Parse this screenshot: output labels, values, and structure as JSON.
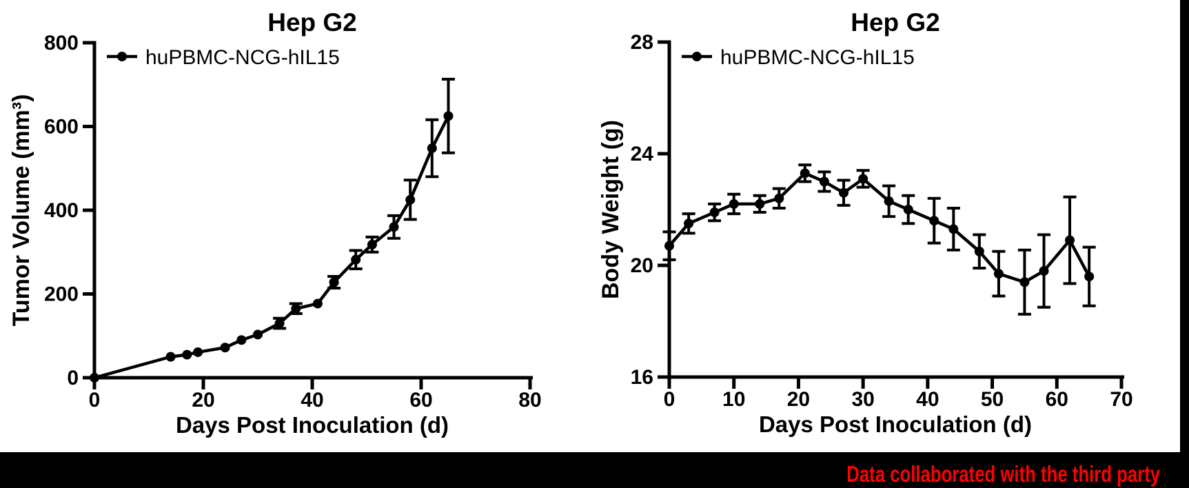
{
  "page": {
    "background": "#000000",
    "panel_background": "#ffffff",
    "foreground": "#000000"
  },
  "annotation": {
    "text": "Data collaborated with the third party",
    "color": "#ff0000"
  },
  "chart_data": [
    {
      "type": "line",
      "title": "Hep G2",
      "xlabel": "Days Post Inoculation (d)",
      "ylabel": "Tumor Volume (mm³)",
      "legend": [
        {
          "label": "huPBMC-NCG-hIL15",
          "color": "#000000",
          "marker": "filled-circle"
        }
      ],
      "legend_position": "top-left-inside",
      "grid": false,
      "xlim": [
        0,
        80
      ],
      "ylim": [
        0,
        800
      ],
      "xticks": [
        0,
        20,
        40,
        60,
        80
      ],
      "yticks": [
        0,
        200,
        400,
        600,
        800
      ],
      "series": [
        {
          "name": "huPBMC-NCG-hIL15",
          "x": [
            0,
            14,
            17,
            19,
            24,
            27,
            30,
            34,
            37,
            41,
            44,
            48,
            51,
            55,
            58,
            62,
            65
          ],
          "y": [
            0,
            50,
            55,
            61,
            72,
            90,
            103,
            130,
            165,
            177,
            228,
            282,
            318,
            360,
            425,
            548,
            625
          ],
          "err": [
            0,
            5,
            5,
            6,
            7,
            8,
            9,
            12,
            12,
            10,
            14,
            22,
            18,
            27,
            47,
            68,
            88
          ]
        }
      ]
    },
    {
      "type": "line",
      "title": "Hep G2",
      "xlabel": "Days Post Inoculation (d)",
      "ylabel": "Body Weight (g)",
      "legend": [
        {
          "label": "huPBMC-NCG-hIL15",
          "color": "#000000",
          "marker": "filled-circle"
        }
      ],
      "legend_position": "top-left-inside",
      "grid": false,
      "xlim": [
        0,
        70
      ],
      "ylim": [
        16,
        28
      ],
      "xticks": [
        0,
        10,
        20,
        30,
        40,
        50,
        60,
        70
      ],
      "yticks": [
        16,
        20,
        24,
        28
      ],
      "series": [
        {
          "name": "huPBMC-NCG-hIL15",
          "x": [
            0,
            3,
            7,
            10,
            14,
            17,
            21,
            24,
            27,
            30,
            34,
            37,
            41,
            44,
            48,
            51,
            55,
            58,
            62,
            65
          ],
          "y": [
            20.7,
            21.5,
            21.9,
            22.2,
            22.2,
            22.4,
            23.3,
            23.0,
            22.6,
            23.1,
            22.3,
            22.0,
            21.6,
            21.3,
            20.5,
            19.7,
            19.4,
            19.8,
            20.9,
            19.6
          ],
          "err": [
            0.5,
            0.35,
            0.3,
            0.35,
            0.3,
            0.35,
            0.3,
            0.35,
            0.45,
            0.3,
            0.55,
            0.5,
            0.8,
            0.75,
            0.6,
            0.8,
            1.15,
            1.3,
            1.55,
            1.05
          ]
        }
      ]
    }
  ]
}
